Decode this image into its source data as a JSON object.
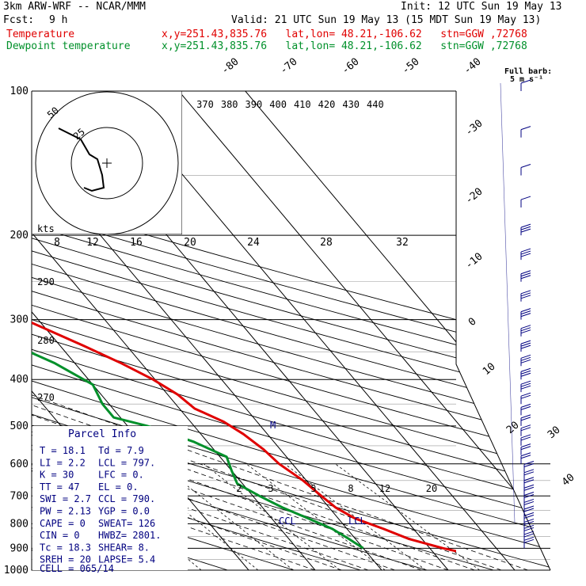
{
  "header": {
    "model": "3km ARW-WRF -- NCAR/MMM",
    "init": "Init: 12 UTC Sun 19 May 13",
    "fcst_label": "Fcst:",
    "fcst_value": "9 h",
    "valid": "Valid: 21 UTC Sun 19 May 13 (15 MDT Sun 19 May 13)",
    "series1_name": "Temperature",
    "series2_name": "Dewpoint temperature",
    "location": "x,y=251.43,835.76   lat,lon= 48.21,-106.62   stn=GGW ,72768"
  },
  "colors": {
    "temperature": "#e00000",
    "dewpoint": "#00902a",
    "hodograph": "#000000",
    "barbs": "#000080"
  },
  "chart_data": {
    "type": "line",
    "pressure_levels": [
      100,
      200,
      300,
      400,
      500,
      600,
      700,
      800,
      900,
      1000
    ],
    "isotherm_labels": [
      -80,
      -70,
      -60,
      -50,
      -40,
      -30,
      -20,
      -10,
      0,
      10,
      20,
      30,
      40
    ],
    "theta_labels": [
      370,
      380,
      390,
      400,
      410,
      420,
      430,
      440
    ],
    "theta_left_labels": [
      290,
      280,
      270
    ],
    "mixing_ratio_labels": [
      2,
      3,
      5,
      8,
      12,
      20
    ],
    "hodo_speed_labels": [
      8,
      12,
      16,
      20,
      24,
      28,
      32
    ],
    "hodo_ring_labels": [
      25,
      50
    ],
    "hodo_units": "kts",
    "barb_legend": [
      "Full barb:",
      "5 m s⁻¹"
    ],
    "series": [
      {
        "name": "Temperature",
        "points": [
          [
            920,
            24.5
          ],
          [
            900,
            22
          ],
          [
            860,
            18
          ],
          [
            820,
            15.5
          ],
          [
            780,
            12.5
          ],
          [
            740,
            11
          ],
          [
            700,
            10.3
          ],
          [
            650,
            9.5
          ],
          [
            600,
            8
          ],
          [
            560,
            7.5
          ],
          [
            520,
            6.4
          ],
          [
            490,
            5
          ],
          [
            460,
            2.3
          ],
          [
            430,
            1.5
          ],
          [
            400,
            -0.3
          ],
          [
            370,
            -3
          ],
          [
            340,
            -6.5
          ],
          [
            300,
            -12
          ],
          [
            260,
            -19
          ],
          [
            235,
            -25
          ],
          [
            220,
            -30
          ],
          [
            205,
            -34
          ],
          [
            195,
            -37
          ],
          [
            180,
            -40
          ],
          [
            160,
            -42
          ],
          [
            140,
            -43
          ],
          [
            120,
            -47
          ],
          [
            100,
            -51
          ]
        ]
      },
      {
        "name": "Dewpoint temperature",
        "points": [
          [
            900,
            10
          ],
          [
            860,
            9
          ],
          [
            820,
            7.8
          ],
          [
            780,
            5.5
          ],
          [
            740,
            3
          ],
          [
            700,
            1
          ],
          [
            660,
            -0.8
          ],
          [
            620,
            0
          ],
          [
            580,
            1
          ],
          [
            540,
            -2
          ],
          [
            500,
            -7
          ],
          [
            480,
            -11
          ],
          [
            450,
            -11
          ],
          [
            410,
            -10
          ],
          [
            370,
            -13
          ],
          [
            330,
            -18
          ],
          [
            300,
            -22
          ],
          [
            260,
            -30
          ],
          [
            235,
            -38
          ],
          [
            220,
            -44
          ],
          [
            210,
            -45
          ],
          [
            195,
            -50
          ],
          [
            170,
            -57
          ],
          [
            140,
            -63
          ],
          [
            120,
            -72
          ],
          [
            100,
            -72
          ]
        ]
      }
    ],
    "hodograph": [
      [
        -7,
        39
      ],
      [
        -11,
        31
      ],
      [
        -18,
        27
      ],
      [
        -22,
        19
      ],
      [
        -23,
        11
      ],
      [
        -22,
        4
      ],
      [
        -25,
        1
      ],
      [
        -30,
        0
      ]
    ],
    "parcel_labels": [
      "CCL",
      "LCL"
    ],
    "parcel_mark": "M"
  },
  "parcel_info": {
    "title": "Parcel Info",
    "rows": [
      [
        "T  =    18.1",
        "Td =    7.9"
      ],
      [
        "LI =     2.2",
        "LCL =  797."
      ],
      [
        "K  =      30",
        "LFC =    0."
      ],
      [
        "TT =      47",
        "EL  =    0."
      ],
      [
        "SWI =    2.7",
        "CCL =  790."
      ],
      [
        "PW =    2.13",
        "YGP =   0.0"
      ],
      [
        "CAPE =     0",
        "SWEAT=   126"
      ],
      [
        "CIN =      0",
        "HWBZ= 2801."
      ],
      [
        "Tc =    18.3",
        "SHEAR=    8."
      ],
      [
        "SREH =    20",
        "LAPSE=   5.4"
      ]
    ],
    "cell": "CELL = 065/14"
  }
}
